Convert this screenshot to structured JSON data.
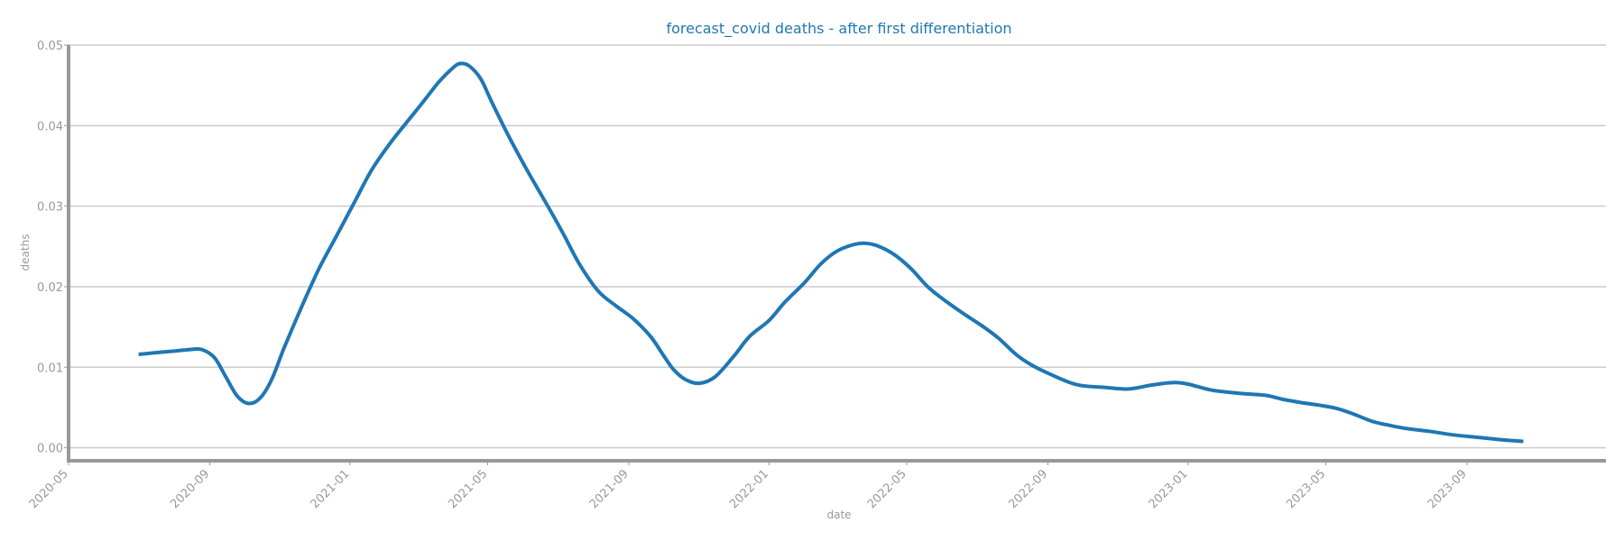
{
  "colors": {
    "line": "#1f77b4",
    "title": "#1f77b4",
    "axis": "#999999",
    "grid": "#cccccc"
  },
  "chart_data": {
    "type": "line",
    "title": "forecast_covid deaths - after first differentiation",
    "xlabel": "date",
    "ylabel": "deaths",
    "grid": "horizontal",
    "x_ticks": [
      "2020-05",
      "2020-09",
      "2021-01",
      "2021-05",
      "2021-09",
      "2022-01",
      "2022-05",
      "2022-09",
      "2023-01",
      "2023-05",
      "2023-09"
    ],
    "y_ticks": [
      "0.00",
      "0.01",
      "0.02",
      "0.03",
      "0.04",
      "0.05"
    ],
    "ylim": [
      -0.0015,
      0.05
    ],
    "xlim": [
      "2020-05-01",
      "2023-12-31"
    ],
    "series": [
      {
        "x": [
          "2020-07-01",
          "2020-07-15",
          "2020-08-01",
          "2020-08-15",
          "2020-08-25",
          "2020-09-05",
          "2020-09-15",
          "2020-09-25",
          "2020-10-05",
          "2020-10-15",
          "2020-10-25",
          "2020-11-05",
          "2020-11-20",
          "2020-12-05",
          "2020-12-20",
          "2021-01-05",
          "2021-01-20",
          "2021-02-05",
          "2021-02-20",
          "2021-03-05",
          "2021-03-20",
          "2021-04-01",
          "2021-04-07",
          "2021-04-15",
          "2021-04-25",
          "2021-05-05",
          "2021-05-20",
          "2021-06-05",
          "2021-06-20",
          "2021-07-05",
          "2021-07-20",
          "2021-08-05",
          "2021-08-20",
          "2021-09-05",
          "2021-09-20",
          "2021-10-01",
          "2021-10-10",
          "2021-10-20",
          "2021-11-01",
          "2021-11-15",
          "2021-12-01",
          "2021-12-15",
          "2022-01-01",
          "2022-01-15",
          "2022-02-01",
          "2022-02-15",
          "2022-03-01",
          "2022-03-15",
          "2022-03-25",
          "2022-04-05",
          "2022-04-20",
          "2022-05-05",
          "2022-05-20",
          "2022-06-05",
          "2022-06-20",
          "2022-07-05",
          "2022-07-20",
          "2022-08-05",
          "2022-08-20",
          "2022-09-05",
          "2022-09-20",
          "2022-10-01",
          "2022-10-20",
          "2022-11-10",
          "2022-12-01",
          "2022-12-20",
          "2023-01-01",
          "2023-01-20",
          "2023-02-05",
          "2023-02-20",
          "2023-03-10",
          "2023-03-25",
          "2023-04-10",
          "2023-04-25",
          "2023-05-10",
          "2023-05-25",
          "2023-06-10",
          "2023-06-25",
          "2023-07-10",
          "2023-08-01",
          "2023-08-20",
          "2023-09-10",
          "2023-10-01",
          "2023-10-20"
        ],
        "y": [
          0.0116,
          0.0118,
          0.012,
          0.0122,
          0.0122,
          0.0112,
          0.0088,
          0.0064,
          0.0055,
          0.0062,
          0.0085,
          0.0125,
          0.0175,
          0.0222,
          0.0262,
          0.0305,
          0.0345,
          0.0378,
          0.0405,
          0.0428,
          0.0455,
          0.0472,
          0.0477,
          0.0474,
          0.0458,
          0.0428,
          0.0385,
          0.0343,
          0.0306,
          0.0268,
          0.0228,
          0.0195,
          0.0177,
          0.016,
          0.0138,
          0.0115,
          0.0097,
          0.0085,
          0.008,
          0.0088,
          0.0113,
          0.0138,
          0.0158,
          0.0181,
          0.0205,
          0.0228,
          0.0244,
          0.0252,
          0.0254,
          0.0251,
          0.024,
          0.0222,
          0.0199,
          0.0181,
          0.0166,
          0.0152,
          0.0136,
          0.0115,
          0.0101,
          0.009,
          0.0081,
          0.0077,
          0.0075,
          0.0073,
          0.0078,
          0.0081,
          0.0079,
          0.0072,
          0.0069,
          0.0067,
          0.0065,
          0.006,
          0.0056,
          0.0053,
          0.0049,
          0.0042,
          0.0033,
          0.0028,
          0.0024,
          0.002,
          0.0016,
          0.0013,
          0.001,
          0.0008
        ]
      }
    ]
  }
}
